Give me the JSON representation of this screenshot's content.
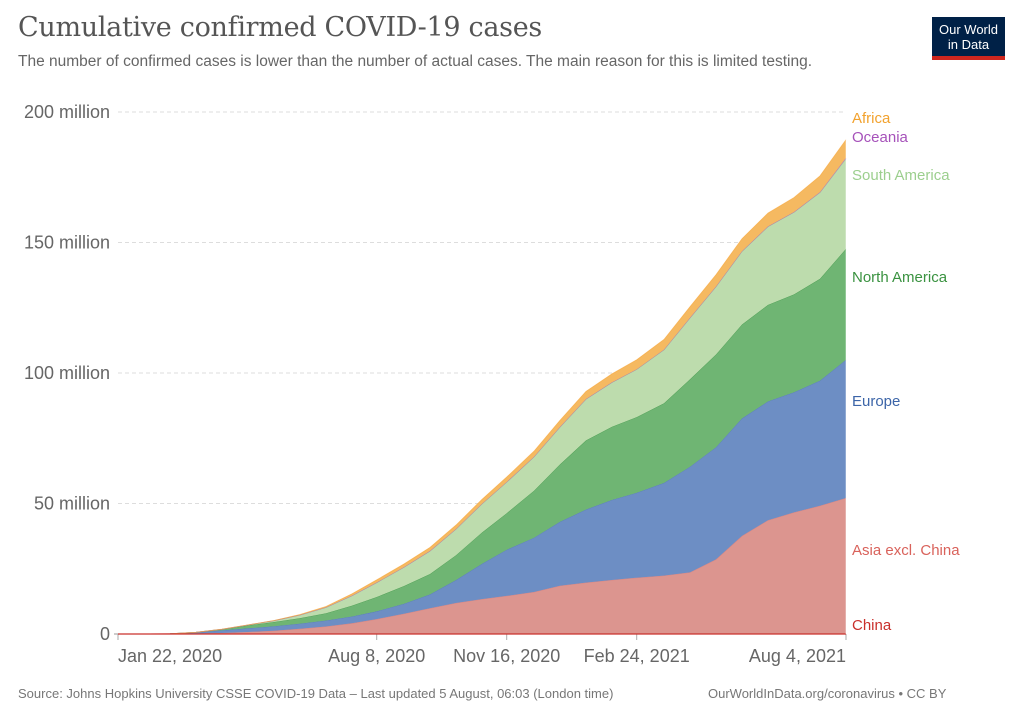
{
  "header": {
    "title": "Cumulative confirmed COVID-19 cases",
    "subtitle": "The number of confirmed cases is lower than the number of actual cases. The main reason for this is limited testing.",
    "logo_line1": "Our World",
    "logo_line2": "in Data"
  },
  "footer": {
    "source": "Source: Johns Hopkins University CSSE COVID-19 Data – Last updated 5 August, 06:03 (London time)",
    "credit": "OurWorldInData.org/coronavirus • CC BY"
  },
  "chart_data": {
    "type": "area",
    "stacked": true,
    "title": "Cumulative confirmed COVID-19 cases",
    "xlabel": "",
    "ylabel": "",
    "ylim": [
      0,
      200
    ],
    "y_unit": "million",
    "grid": true,
    "legend_placement": "right (end labels)",
    "x_ticks": [
      {
        "day": 0,
        "label": "Jan 22, 2020"
      },
      {
        "day": 199,
        "label": "Aug 8, 2020"
      },
      {
        "day": 299,
        "label": "Nov 16, 2020"
      },
      {
        "day": 399,
        "label": "Feb 24, 2021"
      },
      {
        "day": 560,
        "label": "Aug 4, 2021"
      }
    ],
    "y_ticks": [
      {
        "value": 0,
        "label": "0"
      },
      {
        "value": 50,
        "label": "50 million"
      },
      {
        "value": 100,
        "label": "100 million"
      },
      {
        "value": 150,
        "label": "150 million"
      },
      {
        "value": 200,
        "label": "200 million"
      }
    ],
    "x_days": [
      0,
      40,
      60,
      80,
      100,
      120,
      140,
      160,
      180,
      199,
      220,
      240,
      260,
      280,
      299,
      320,
      340,
      360,
      380,
      399,
      420,
      440,
      460,
      480,
      500,
      520,
      540,
      560
    ],
    "series": [
      {
        "name": "China",
        "color": "#c9302c",
        "label_color": "#c9302c",
        "fill": "#d73027",
        "values": [
          0.0005,
          0.08,
          0.08,
          0.08,
          0.08,
          0.08,
          0.08,
          0.08,
          0.09,
          0.09,
          0.09,
          0.09,
          0.09,
          0.09,
          0.09,
          0.09,
          0.09,
          0.09,
          0.09,
          0.09,
          0.09,
          0.09,
          0.09,
          0.1,
          0.1,
          0.1,
          0.1,
          0.1
        ]
      },
      {
        "name": "Asia excl. China",
        "color": "#dc7670",
        "label_color": "#d9625b",
        "fill": "#dc958f",
        "values": [
          0,
          0.01,
          0.1,
          0.3,
          0.7,
          1.2,
          1.9,
          2.8,
          4.0,
          5.6,
          7.7,
          9.8,
          11.8,
          13.3,
          14.5,
          16.0,
          18.4,
          19.6,
          20.6,
          21.5,
          22.3,
          23.5,
          28.5,
          37.5,
          43.5,
          46.5,
          49.0,
          52.0
        ]
      },
      {
        "name": "Europe",
        "color": "#4c74b5",
        "label_color": "#3c65a8",
        "fill": "#6d8ec4",
        "values": [
          0,
          0.003,
          0.4,
          1.0,
          1.4,
          1.7,
          2.0,
          2.3,
          2.6,
          3.0,
          3.8,
          5.3,
          8.8,
          13.5,
          17.7,
          20.8,
          24.5,
          28.0,
          30.7,
          32.5,
          35.5,
          40.5,
          43.0,
          45.0,
          45.5,
          46.0,
          48.0,
          53.0
        ]
      },
      {
        "name": "North America",
        "color": "#3a9240",
        "label_color": "#3a9240",
        "fill": "#6fb573",
        "values": [
          0,
          0,
          0.07,
          0.4,
          1.1,
          1.6,
          2.1,
          2.8,
          4.2,
          5.5,
          6.8,
          7.8,
          9.5,
          12.0,
          14.0,
          18.0,
          22.0,
          26.5,
          28.0,
          29.0,
          30.5,
          33.5,
          35.5,
          36.0,
          37.0,
          37.5,
          39.0,
          42.5
        ]
      },
      {
        "name": "South America",
        "color": "#9ccf8e",
        "label_color": "#9ccf8e",
        "fill": "#bddcad",
        "values": [
          0,
          0,
          0.01,
          0.03,
          0.15,
          0.5,
          1.2,
          2.2,
          3.8,
          5.5,
          7.2,
          8.8,
          10.0,
          11.0,
          11.9,
          13.0,
          14.3,
          15.8,
          17.0,
          18.3,
          20.5,
          23.5,
          26.0,
          28.0,
          30.0,
          31.5,
          33.0,
          34.5
        ]
      },
      {
        "name": "Oceania",
        "color": "#a652ba",
        "label_color": "#a652ba",
        "fill": "#c58ecf",
        "values": [
          0,
          0,
          0.0,
          0.005,
          0.008,
          0.009,
          0.01,
          0.012,
          0.02,
          0.025,
          0.03,
          0.033,
          0.035,
          0.037,
          0.04,
          0.045,
          0.048,
          0.05,
          0.052,
          0.055,
          0.057,
          0.06,
          0.065,
          0.07,
          0.08,
          0.1,
          0.2,
          0.3
        ]
      },
      {
        "name": "Africa",
        "color": "#f6a73a",
        "label_color": "#f2a22e",
        "fill": "#f5b961",
        "values": [
          0,
          0,
          0.0,
          0.01,
          0.04,
          0.09,
          0.2,
          0.35,
          0.7,
          1.0,
          1.2,
          1.35,
          1.5,
          1.65,
          1.9,
          2.1,
          2.5,
          2.9,
          3.2,
          3.6,
          3.9,
          4.2,
          4.5,
          4.8,
          5.1,
          5.5,
          6.2,
          7.0
        ]
      }
    ]
  }
}
